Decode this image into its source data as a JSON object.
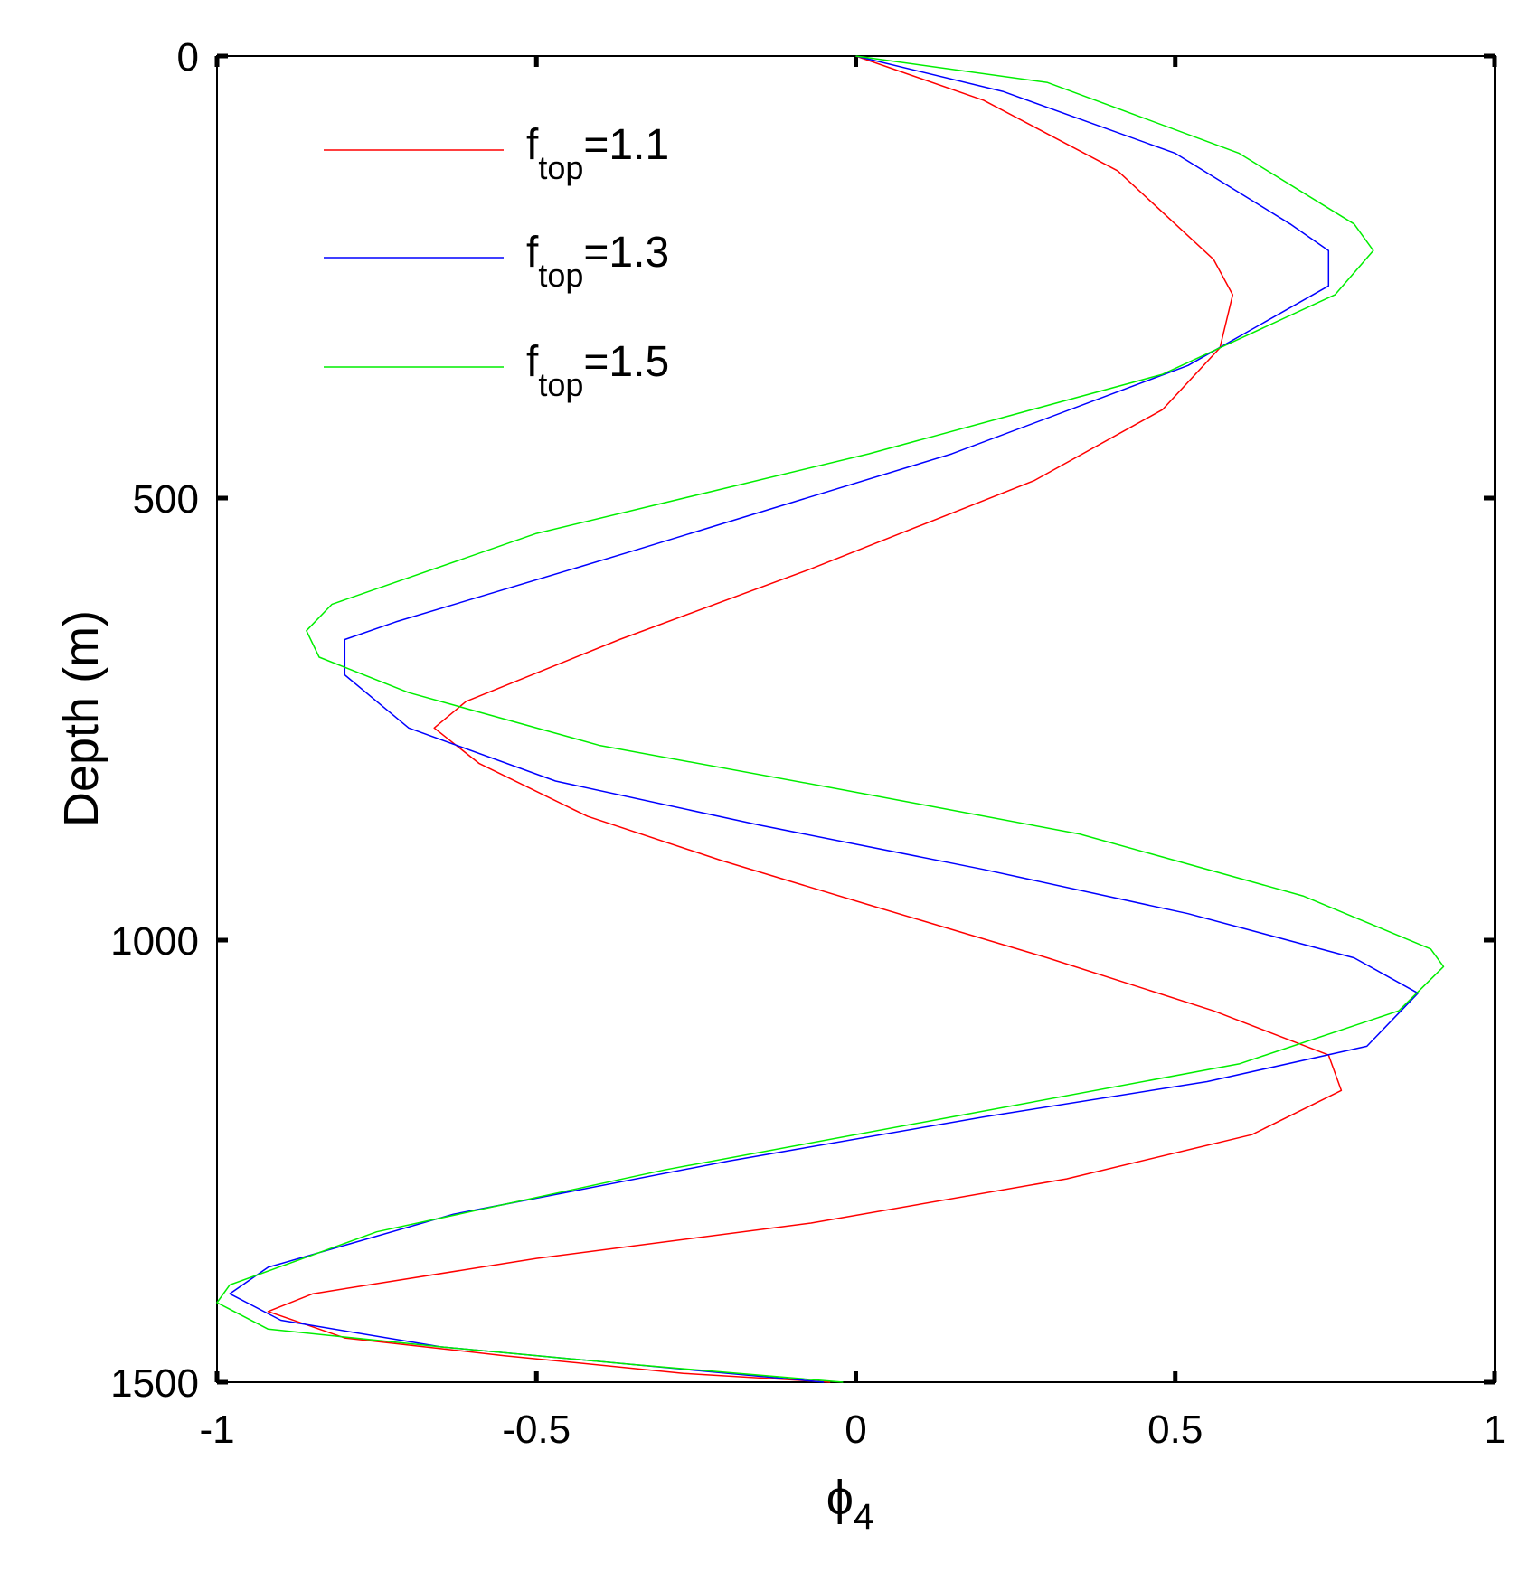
{
  "chart_data": {
    "type": "line",
    "title": "",
    "xlabel": "ϕ",
    "xlabel_sub": "4",
    "ylabel": "Depth (m)",
    "xlim": [
      -1,
      1
    ],
    "ylim": [
      0,
      1500
    ],
    "y_reversed": true,
    "grid": false,
    "legend_position": "top-left",
    "xticks": [
      -1,
      -0.5,
      0,
      0.5,
      1
    ],
    "xtick_labels": [
      "-1",
      "-0.5",
      "0",
      "0.5",
      "1"
    ],
    "yticks": [
      0,
      500,
      1000,
      1500
    ],
    "ytick_labels": [
      "0",
      "500",
      "1000",
      "1500"
    ],
    "series": [
      {
        "label_main": "f",
        "label_sub": "top",
        "label_value": "=1.1",
        "color": "#ff0000",
        "x": [
          0.0,
          0.2,
          0.41,
          0.56,
          0.59,
          0.57,
          0.48,
          0.28,
          -0.07,
          -0.37,
          -0.61,
          -0.66,
          -0.59,
          -0.42,
          -0.21,
          0.02,
          0.3,
          0.56,
          0.74,
          0.76,
          0.62,
          0.33,
          -0.07,
          -0.5,
          -0.85,
          -0.92,
          -0.8,
          -0.55,
          -0.27,
          -0.04
        ],
        "y": [
          0,
          50,
          130,
          230,
          270,
          330,
          400,
          480,
          580,
          660,
          730,
          760,
          800,
          860,
          910,
          960,
          1020,
          1080,
          1130,
          1170,
          1220,
          1270,
          1320,
          1360,
          1400,
          1420,
          1450,
          1470,
          1490,
          1500
        ]
      },
      {
        "label_main": "f",
        "label_sub": "top",
        "label_value": "=1.3",
        "color": "#0000ff",
        "x": [
          0.0,
          0.23,
          0.5,
          0.68,
          0.74,
          0.74,
          0.52,
          0.15,
          -0.35,
          -0.72,
          -0.8,
          -0.8,
          -0.7,
          -0.47,
          -0.15,
          0.2,
          0.52,
          0.78,
          0.88,
          0.8,
          0.55,
          0.2,
          -0.2,
          -0.63,
          -0.92,
          -0.98,
          -0.9,
          -0.65,
          -0.35,
          -0.05
        ],
        "y": [
          0,
          40,
          110,
          190,
          220,
          260,
          350,
          450,
          560,
          640,
          660,
          700,
          760,
          820,
          870,
          920,
          970,
          1020,
          1060,
          1120,
          1160,
          1200,
          1250,
          1310,
          1370,
          1400,
          1430,
          1460,
          1480,
          1500
        ]
      },
      {
        "label_main": "f",
        "label_sub": "top",
        "label_value": "=1.5",
        "color": "#00ee00",
        "x": [
          0.0,
          0.3,
          0.6,
          0.78,
          0.81,
          0.75,
          0.48,
          0.02,
          -0.5,
          -0.82,
          -0.86,
          -0.84,
          -0.7,
          -0.4,
          -0.02,
          0.35,
          0.7,
          0.9,
          0.92,
          0.85,
          0.6,
          0.15,
          -0.3,
          -0.75,
          -0.98,
          -1.0,
          -0.92,
          -0.65,
          -0.35,
          -0.02
        ],
        "y": [
          0,
          30,
          110,
          190,
          220,
          270,
          360,
          450,
          540,
          620,
          650,
          680,
          720,
          780,
          830,
          880,
          950,
          1010,
          1030,
          1080,
          1140,
          1200,
          1260,
          1330,
          1390,
          1410,
          1440,
          1460,
          1480,
          1500
        ]
      }
    ]
  }
}
